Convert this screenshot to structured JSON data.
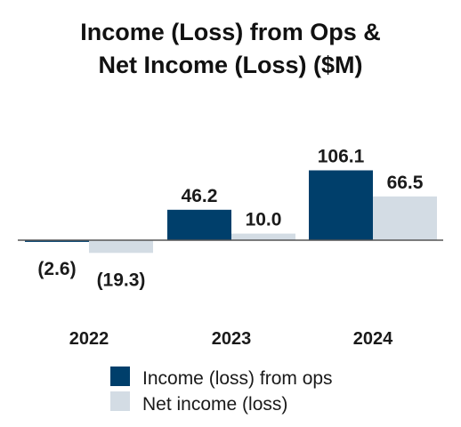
{
  "chart_data": {
    "type": "bar",
    "title": "Income (Loss) from Ops &",
    "subtitle": "Net Income (Loss) ($M)",
    "categories": [
      "2022",
      "2023",
      "2024"
    ],
    "series": [
      {
        "name": "Income (loss) from ops",
        "color": "#003f6b",
        "values": [
          -2.6,
          46.2,
          106.1
        ],
        "labels": [
          "(2.6)",
          "46.2",
          "106.1"
        ]
      },
      {
        "name": "Net income (loss)",
        "color": "#d3dce4",
        "values": [
          -19.3,
          10.0,
          66.5
        ],
        "labels": [
          "(19.3)",
          "10.0",
          "66.5"
        ]
      }
    ],
    "xlabel": "",
    "ylabel": "",
    "ylim": [
      -20,
      110
    ],
    "grid": false,
    "legend": "bottom-center"
  }
}
